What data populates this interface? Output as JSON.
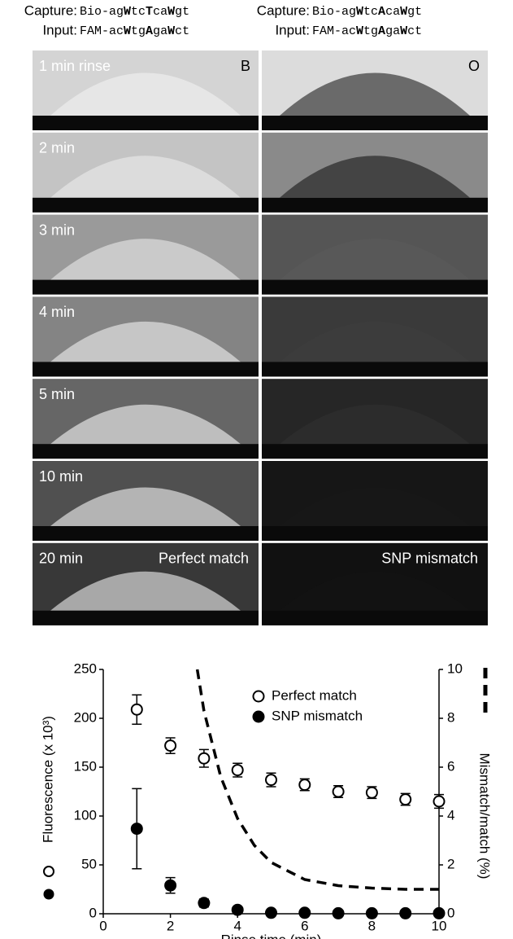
{
  "header": {
    "left": {
      "capture_label": "Capture:",
      "capture": [
        "Bio-ag",
        "W",
        "tc",
        "T",
        "ca",
        "W",
        "gt"
      ],
      "input_label": "Input:",
      "input": [
        "FAM-ac",
        "W",
        "tg",
        "A",
        "ga",
        "W",
        "ct"
      ]
    },
    "right": {
      "capture_label": "Capture:",
      "capture": [
        "Bio-ag",
        "W",
        "tc",
        "A",
        "ca",
        "W",
        "gt"
      ],
      "input_label": "Input:",
      "input": [
        "FAM-ac",
        "W",
        "tg",
        "A",
        "ga",
        "W",
        "ct"
      ]
    }
  },
  "panels": {
    "times": [
      "1 min rinse",
      "2 min",
      "3 min",
      "4 min",
      "5 min",
      "10 min",
      "20 min"
    ],
    "left": {
      "corner": "B",
      "caption": "Perfect match"
    },
    "right": {
      "corner": "O",
      "caption": "SNP mismatch"
    }
  },
  "chart_data": {
    "type": "scatter",
    "x_label": "Rinse time (min)",
    "y_label": "Fluorescence (x 10³)",
    "y2_label": "Mismatch/match (%)",
    "xlim": [
      0,
      10
    ],
    "xticks": [
      0,
      2,
      4,
      6,
      8,
      10
    ],
    "ylim": [
      0,
      250
    ],
    "yticks": [
      0,
      50,
      100,
      150,
      200,
      250
    ],
    "y2lim": [
      0,
      10
    ],
    "y2ticks": [
      0,
      2,
      4,
      6,
      8,
      10
    ],
    "legend": "upper right",
    "series": [
      {
        "name": "Perfect match",
        "color": "#000000",
        "marker": "open",
        "x": [
          1,
          2,
          3,
          4,
          5,
          6,
          7,
          8,
          9,
          10
        ],
        "values": [
          209,
          172,
          159,
          147,
          137,
          132,
          125,
          124,
          117,
          115
        ],
        "errors": [
          15,
          8,
          9,
          7,
          7,
          6,
          6,
          6,
          6,
          7
        ]
      },
      {
        "name": "SNP mismatch",
        "color": "#000000",
        "marker": "filled",
        "x": [
          1,
          2,
          3,
          4,
          5,
          6,
          7,
          8,
          9,
          10
        ],
        "values": [
          87,
          29,
          11,
          4,
          1,
          1,
          0.5,
          0.5,
          0.5,
          0.5
        ],
        "errors": [
          41,
          8,
          4,
          2,
          1,
          1,
          1,
          1,
          1,
          1
        ]
      },
      {
        "type": "line",
        "axis": "y2",
        "color": "#000000",
        "dashed": true,
        "x": [
          2.8,
          3,
          3.5,
          4,
          4.5,
          5,
          6,
          7,
          8,
          9,
          10
        ],
        "values": [
          10,
          8.3,
          5.6,
          3.9,
          2.8,
          2.1,
          1.4,
          1.15,
          1.05,
          1,
          1
        ]
      }
    ]
  }
}
